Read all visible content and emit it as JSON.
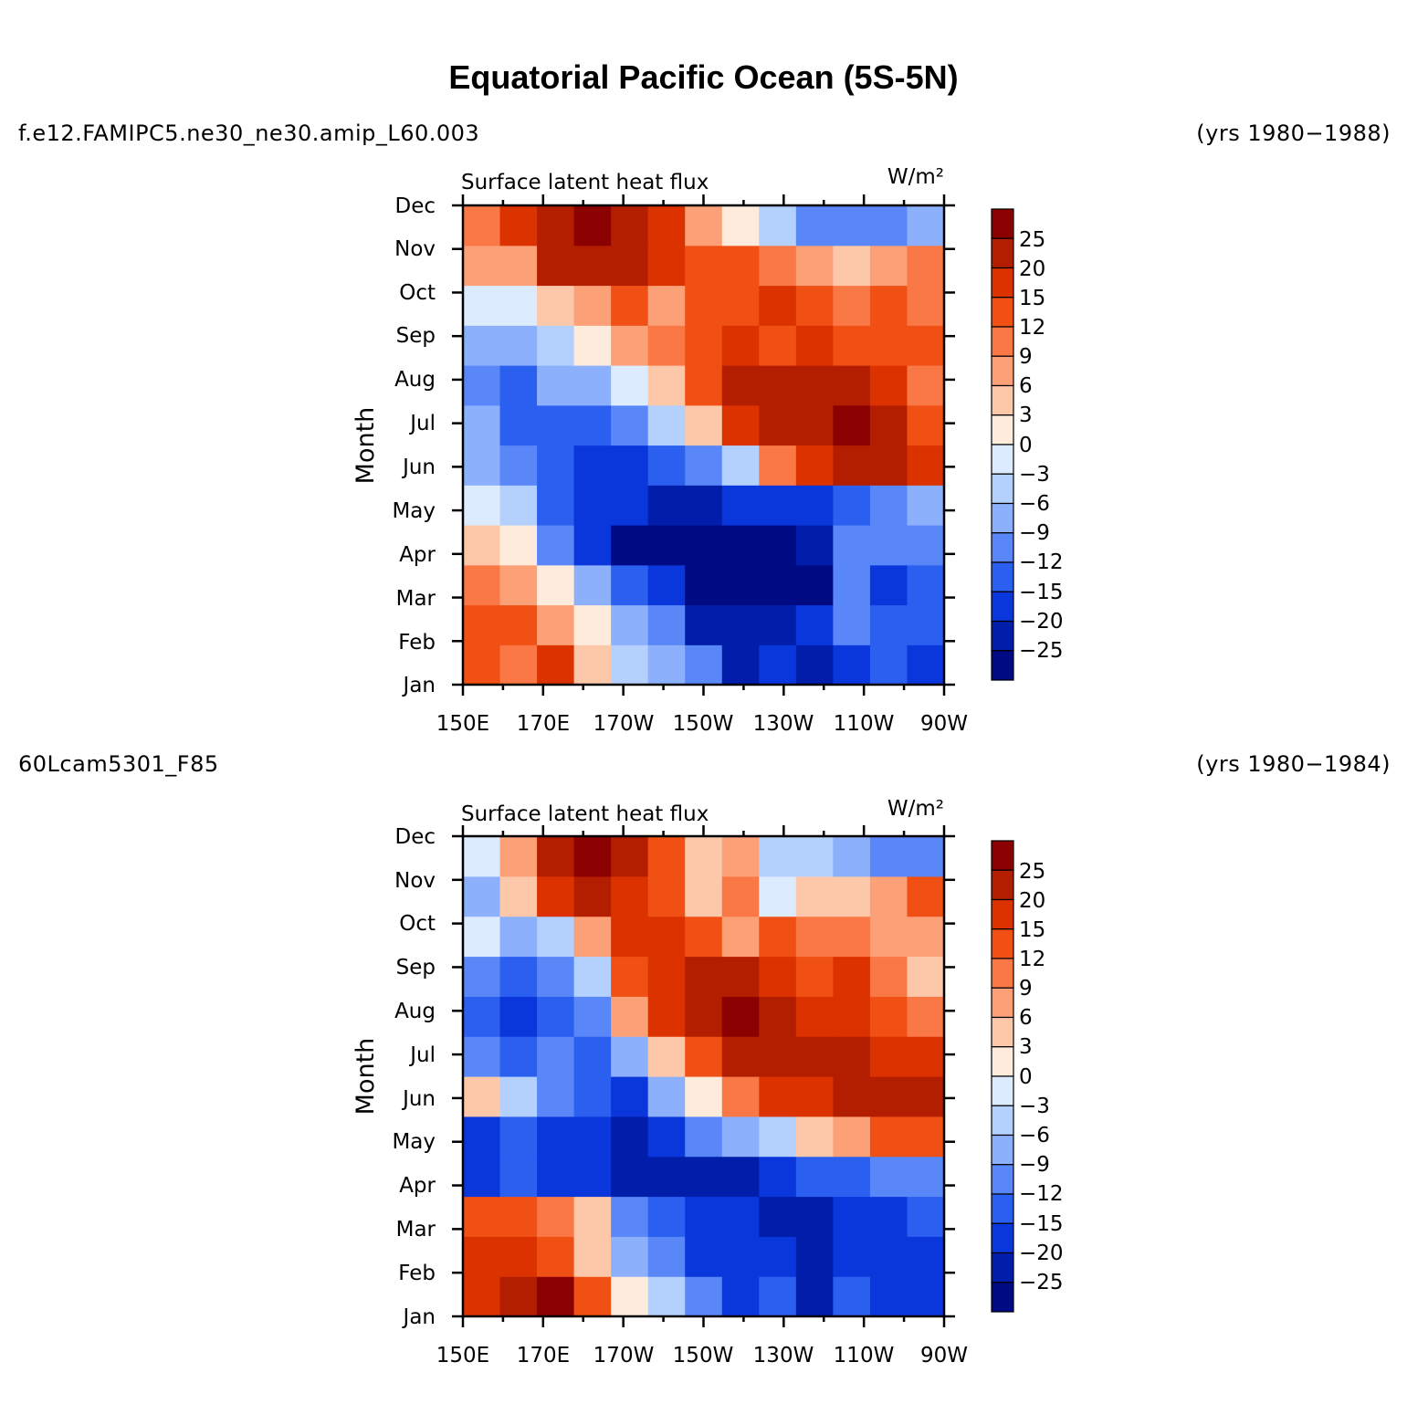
{
  "figure": {
    "title": "Equatorial Pacific Ocean (5S-5N)"
  },
  "colorbar": {
    "levels": [
      "25",
      "20",
      "15",
      "12",
      "9",
      "6",
      "3",
      "0",
      "−3",
      "−6",
      "−9",
      "−12",
      "−15",
      "−20",
      "−25"
    ],
    "colors": [
      "#8b0000",
      "#b41e00",
      "#dc3200",
      "#f05014",
      "#fa7846",
      "#fca078",
      "#fdc8aa",
      "#feebdc",
      "#dcebfe",
      "#b4d0fd",
      "#8cb0fb",
      "#5a87f8",
      "#2a5ff0",
      "#0a37dc",
      "#001eaa",
      "#000a82"
    ]
  },
  "chart_data": [
    {
      "type": "heatmap",
      "run": "f.e12.FAMIPC5.ne30_ne30.amip_L60.003",
      "years": "(yrs 1980−1988)",
      "title": "Surface latent heat flux",
      "units": "W/m²",
      "ylabel": "Month",
      "xlabel": "",
      "x_ticks": [
        "150E",
        "170E",
        "170W",
        "150W",
        "130W",
        "110W",
        "90W"
      ],
      "y_ticks": [
        "Jan",
        "Feb",
        "Mar",
        "Apr",
        "May",
        "Jun",
        "Jul",
        "Aug",
        "Sep",
        "Oct",
        "Nov",
        "Dec"
      ],
      "x_longitudes_E": [
        150,
        160,
        170,
        180,
        190,
        200,
        210,
        220,
        230,
        240,
        250,
        260,
        270
      ],
      "values": [
        [
          12,
          9,
          16,
          3,
          -6,
          -9,
          -12,
          -25,
          -20,
          -25,
          -20,
          -15,
          -20
        ],
        [
          14,
          12,
          6,
          0,
          -9,
          -12,
          -25,
          -25,
          -25,
          -20,
          -12,
          -15,
          -15
        ],
        [
          9,
          6,
          0,
          -9,
          -15,
          -20,
          -27,
          -28,
          -28,
          -28,
          -12,
          -20,
          -15
        ],
        [
          3,
          0,
          -12,
          -20,
          -27,
          -28,
          -28,
          -28,
          -28,
          -25,
          -12,
          -12,
          -12
        ],
        [
          -3,
          -6,
          -15,
          -20,
          -20,
          -25,
          -25,
          -20,
          -20,
          -20,
          -15,
          -12,
          -9
        ],
        [
          -9,
          -12,
          -15,
          -18,
          -20,
          -15,
          -12,
          -6,
          9,
          15,
          20,
          20,
          15
        ],
        [
          -9,
          -15,
          -15,
          -15,
          -12,
          -6,
          3,
          15,
          20,
          22,
          25,
          22,
          12
        ],
        [
          -12,
          -15,
          -9,
          -9,
          -3,
          3,
          12,
          20,
          22,
          20,
          22,
          15,
          9
        ],
        [
          -9,
          -9,
          -6,
          0,
          6,
          9,
          12,
          15,
          12,
          15,
          12,
          12,
          12
        ],
        [
          -3,
          -3,
          3,
          6,
          12,
          6,
          12,
          12,
          15,
          12,
          9,
          12,
          9
        ],
        [
          6,
          6,
          20,
          22,
          20,
          15,
          12,
          12,
          9,
          6,
          3,
          6,
          9
        ],
        [
          9,
          15,
          22,
          25,
          20,
          15,
          6,
          0,
          -6,
          -12,
          -12,
          -12,
          -9
        ]
      ]
    },
    {
      "type": "heatmap",
      "run": "60Lcam5301_F85",
      "years": "(yrs 1980−1984)",
      "title": "Surface latent heat flux",
      "units": "W/m²",
      "ylabel": "Month",
      "xlabel": "",
      "x_ticks": [
        "150E",
        "170E",
        "170W",
        "150W",
        "130W",
        "110W",
        "90W"
      ],
      "y_ticks": [
        "Jan",
        "Feb",
        "Mar",
        "Apr",
        "May",
        "Jun",
        "Jul",
        "Aug",
        "Sep",
        "Oct",
        "Nov",
        "Dec"
      ],
      "x_longitudes_E": [
        150,
        160,
        170,
        180,
        190,
        200,
        210,
        220,
        230,
        240,
        250,
        260,
        270
      ],
      "values": [
        [
          15,
          20,
          25,
          12,
          0,
          -6,
          -12,
          -20,
          -15,
          -25,
          -15,
          -20,
          -20
        ],
        [
          15,
          15,
          12,
          3,
          -9,
          -12,
          -20,
          -20,
          -20,
          -25,
          -20,
          -20,
          -20
        ],
        [
          12,
          12,
          9,
          3,
          -12,
          -15,
          -20,
          -20,
          -25,
          -25,
          -20,
          -20,
          -15
        ],
        [
          -20,
          -15,
          -20,
          -20,
          -25,
          -25,
          -25,
          -25,
          -20,
          -15,
          -15,
          -12,
          -12
        ],
        [
          -20,
          -15,
          -20,
          -20,
          -25,
          -20,
          -12,
          -9,
          -6,
          3,
          6,
          12,
          12
        ],
        [
          3,
          -6,
          -12,
          -15,
          -20,
          -9,
          0,
          9,
          15,
          15,
          20,
          20,
          22
        ],
        [
          -12,
          -15,
          -12,
          -15,
          -9,
          3,
          12,
          20,
          20,
          20,
          20,
          15,
          15
        ],
        [
          -15,
          -20,
          -15,
          -12,
          6,
          15,
          20,
          25,
          20,
          15,
          15,
          12,
          9
        ],
        [
          -12,
          -15,
          -12,
          -6,
          12,
          15,
          20,
          22,
          15,
          12,
          15,
          9,
          3
        ],
        [
          -3,
          -9,
          -6,
          6,
          15,
          15,
          12,
          6,
          12,
          9,
          9,
          6,
          6
        ],
        [
          -9,
          3,
          15,
          20,
          15,
          12,
          3,
          9,
          -3,
          3,
          3,
          6,
          12
        ],
        [
          -3,
          6,
          22,
          25,
          20,
          12,
          3,
          6,
          -6,
          -6,
          -9,
          -12,
          -12
        ]
      ]
    }
  ]
}
